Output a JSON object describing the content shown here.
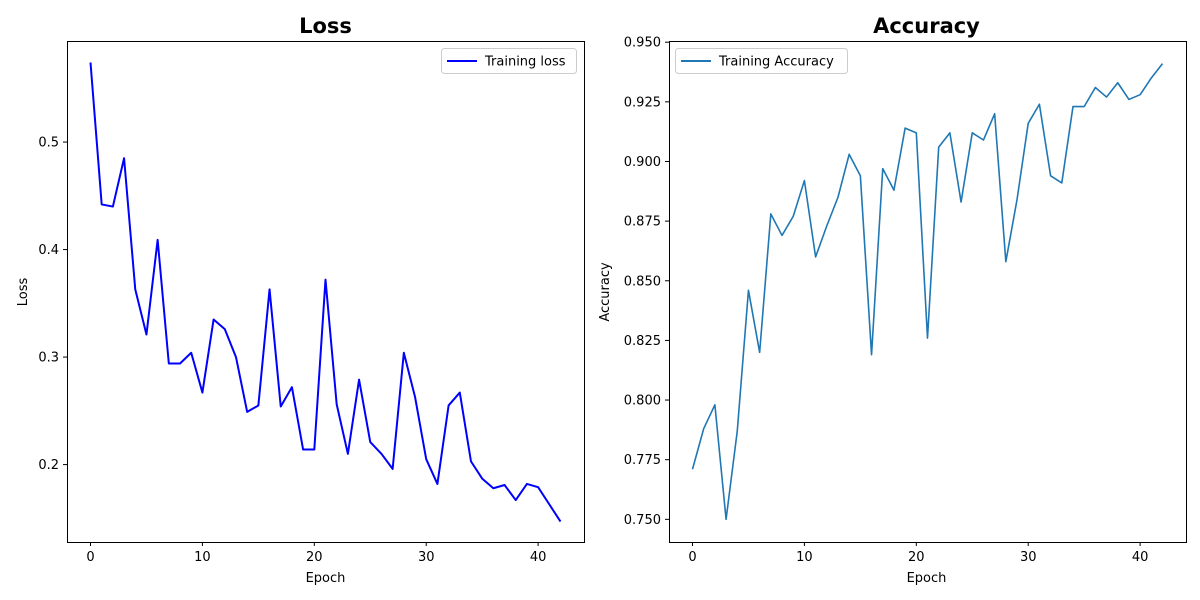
{
  "chart_data": [
    {
      "type": "line",
      "title": "Loss",
      "xlabel": "Epoch",
      "ylabel": "Loss",
      "xlim": [
        -2.1,
        44.1
      ],
      "ylim": [
        0.128,
        0.594
      ],
      "xticks": [
        0,
        10,
        20,
        30,
        40
      ],
      "yticks": [
        0.2,
        0.3,
        0.4,
        0.5
      ],
      "ytick_labels": [
        "0.2",
        "0.3",
        "0.4",
        "0.5"
      ],
      "grid": false,
      "legend_position": "upper right",
      "series": [
        {
          "name": "Training loss",
          "color": "#0000ff",
          "x": [
            0,
            1,
            2,
            3,
            4,
            5,
            6,
            7,
            8,
            9,
            10,
            11,
            12,
            13,
            14,
            15,
            16,
            17,
            18,
            19,
            20,
            21,
            22,
            23,
            24,
            25,
            26,
            27,
            28,
            29,
            30,
            31,
            32,
            33,
            34,
            35,
            36,
            37,
            38,
            39,
            40,
            41,
            42
          ],
          "y": [
            0.574,
            0.442,
            0.44,
            0.485,
            0.363,
            0.321,
            0.409,
            0.294,
            0.294,
            0.304,
            0.267,
            0.335,
            0.326,
            0.3,
            0.249,
            0.255,
            0.363,
            0.254,
            0.272,
            0.214,
            0.214,
            0.372,
            0.256,
            0.21,
            0.279,
            0.221,
            0.21,
            0.196,
            0.304,
            0.263,
            0.205,
            0.182,
            0.255,
            0.267,
            0.203,
            0.187,
            0.178,
            0.181,
            0.167,
            0.182,
            0.179,
            0.163,
            0.147
          ]
        }
      ]
    },
    {
      "type": "line",
      "title": "Accuracy",
      "xlabel": "Epoch",
      "ylabel": "Accuracy",
      "xlim": [
        -2.1,
        44.1
      ],
      "ylim": [
        0.7405,
        0.9505
      ],
      "xticks": [
        0,
        10,
        20,
        30,
        40
      ],
      "yticks": [
        0.75,
        0.775,
        0.8,
        0.825,
        0.85,
        0.875,
        0.9,
        0.925,
        0.95
      ],
      "ytick_labels": [
        "0.750",
        "0.775",
        "0.800",
        "0.825",
        "0.850",
        "0.875",
        "0.900",
        "0.925",
        "0.950"
      ],
      "grid": false,
      "legend_position": "upper left",
      "series": [
        {
          "name": "Training Accuracy",
          "color": "#1f77b4",
          "x": [
            0,
            1,
            2,
            3,
            4,
            5,
            6,
            7,
            8,
            9,
            10,
            11,
            12,
            13,
            14,
            15,
            16,
            17,
            18,
            19,
            20,
            21,
            22,
            23,
            24,
            25,
            26,
            27,
            28,
            29,
            30,
            31,
            32,
            33,
            34,
            35,
            36,
            37,
            38,
            39,
            40,
            41,
            42
          ],
          "y": [
            0.771,
            0.788,
            0.798,
            0.75,
            0.787,
            0.846,
            0.82,
            0.878,
            0.869,
            0.877,
            0.892,
            0.86,
            0.873,
            0.885,
            0.903,
            0.894,
            0.819,
            0.897,
            0.888,
            0.914,
            0.912,
            0.826,
            0.906,
            0.912,
            0.883,
            0.912,
            0.909,
            0.92,
            0.858,
            0.884,
            0.916,
            0.924,
            0.894,
            0.891,
            0.923,
            0.923,
            0.931,
            0.927,
            0.933,
            0.926,
            0.928,
            0.935,
            0.941
          ]
        }
      ]
    }
  ]
}
